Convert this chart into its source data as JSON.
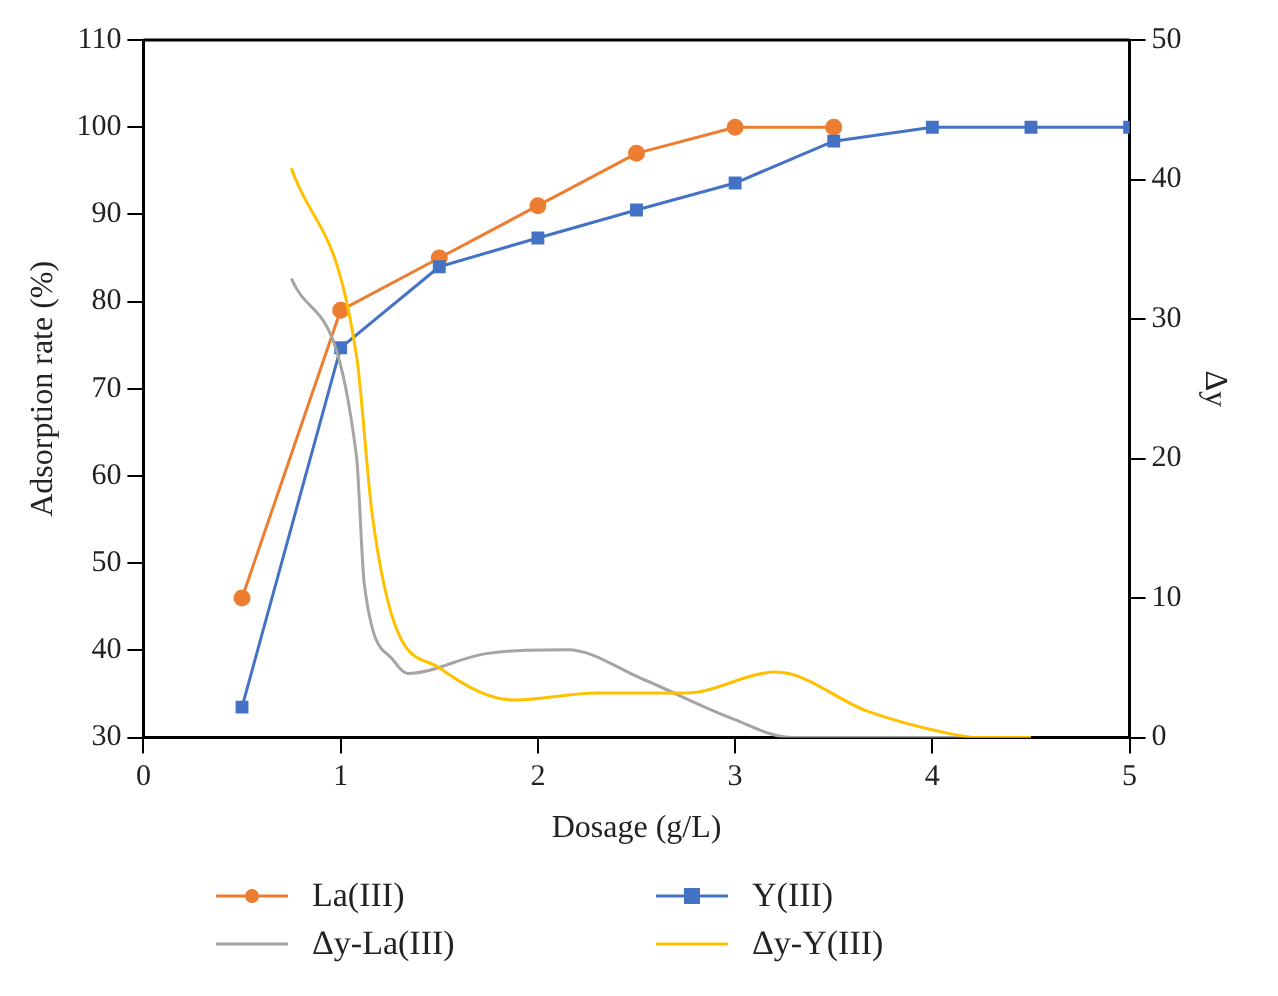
{
  "chart_data": {
    "type": "line",
    "xlabel": "Dosage (g/L)",
    "ylabel": "Adsorption rate (%)",
    "y2label": "Δy",
    "xlim": [
      0,
      5
    ],
    "xticks": [
      0,
      1,
      2,
      3,
      4,
      5
    ],
    "ylim": [
      30,
      110
    ],
    "yticks": [
      30,
      40,
      50,
      60,
      70,
      80,
      90,
      100,
      110
    ],
    "y2lim": [
      0,
      50
    ],
    "y2ticks": [
      0,
      10,
      20,
      30,
      40,
      50
    ],
    "grid": false,
    "legend": "bottom",
    "series": [
      {
        "name": "La(III)",
        "color": "#ed7d31",
        "marker": "circle",
        "x": [
          0.5,
          1,
          1.5,
          2,
          2.5,
          3,
          3.5
        ],
        "values": [
          46,
          79,
          85,
          91,
          97,
          100,
          100
        ]
      },
      {
        "name": "Y(III)",
        "color": "#4472c4",
        "marker": "square",
        "x": [
          0.5,
          1,
          1.5,
          2,
          2.5,
          3,
          3.5,
          4,
          4.5,
          5
        ],
        "values": [
          33.5,
          74.7,
          84,
          87.3,
          90.5,
          93.6,
          98.4,
          100,
          100,
          100
        ]
      },
      {
        "name": "Δy-La(III)",
        "color": "#a5a5a5",
        "marker": "none",
        "axis": "y2",
        "x": [
          0.75,
          1.08,
          1.12,
          1.27,
          1.34,
          1.73,
          2.15,
          2.53,
          2.98,
          3.29,
          4,
          4.5
        ],
        "values": [
          32.9,
          20.2,
          11,
          5.5,
          4.6,
          6.0,
          6.3,
          4.2,
          1.4,
          0,
          0,
          0
        ]
      },
      {
        "name": "Δy-Y(III)",
        "color": "#ffc000",
        "marker": "none",
        "axis": "y2",
        "x": [
          0.75,
          1.08,
          1.16,
          1.27,
          1.5,
          1.88,
          2.3,
          2.75,
          3.21,
          3.67,
          4.05,
          4.24,
          4.5
        ],
        "values": [
          40.8,
          27.4,
          16,
          8.3,
          5.0,
          2.7,
          3.2,
          3.2,
          4.7,
          1.9,
          0.4,
          0,
          0
        ]
      }
    ]
  }
}
